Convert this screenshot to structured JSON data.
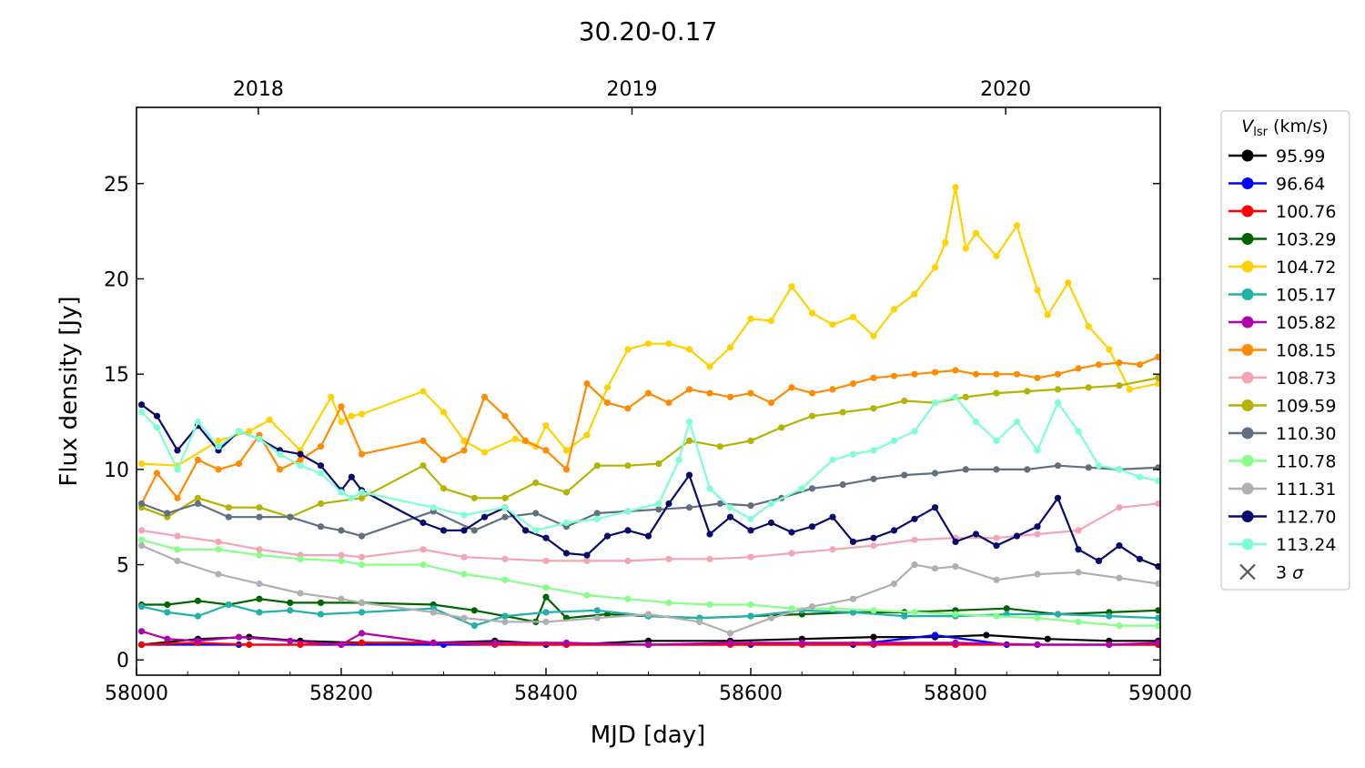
{
  "chart_data": {
    "type": "line",
    "title": "30.20-0.17",
    "xlabel": "MJD [day]",
    "ylabel": "Flux density [Jy]",
    "xlim": [
      58000,
      59000
    ],
    "ylim": [
      -0.8,
      29
    ],
    "x_ticks": [
      58000,
      58200,
      58400,
      58600,
      58800,
      59000
    ],
    "y_ticks": [
      0,
      5,
      10,
      15,
      20,
      25
    ],
    "top_axis": {
      "ticks": [
        {
          "label": "2018",
          "mjd": 58119
        },
        {
          "label": "2019",
          "mjd": 58484
        },
        {
          "label": "2020",
          "mjd": 58849
        }
      ]
    },
    "legend": {
      "title_symbol": "V",
      "title_subscript": "lsr",
      "title_unit": " (km/s)",
      "placement": "outside right, top",
      "extra_entry": {
        "marker": "x",
        "label": "3",
        "symbol": "σ"
      }
    },
    "grid": false,
    "series": [
      {
        "name": "95.99",
        "color": "#000000",
        "x": [
          58005,
          58060,
          58110,
          58160,
          58220,
          58290,
          58350,
          58420,
          58500,
          58580,
          58650,
          58720,
          58780,
          58830,
          58890,
          58950,
          58998
        ],
        "y": [
          0.8,
          1.1,
          1.2,
          1.0,
          0.9,
          0.9,
          1.0,
          0.8,
          1.0,
          1.0,
          1.1,
          1.2,
          1.2,
          1.3,
          1.1,
          1.0,
          1.0
        ]
      },
      {
        "name": "96.64",
        "color": "#0000ff",
        "x": [
          58005,
          58100,
          58200,
          58300,
          58400,
          58500,
          58600,
          58700,
          58780,
          58850,
          58950,
          58998
        ],
        "y": [
          0.8,
          0.8,
          0.8,
          0.8,
          0.8,
          0.8,
          0.8,
          0.8,
          1.3,
          0.8,
          0.8,
          0.8
        ]
      },
      {
        "name": "100.76",
        "color": "#ff0000",
        "x": [
          58005,
          58060,
          58110,
          58160,
          58220,
          58290,
          58350,
          58420,
          58500,
          58580,
          58650,
          58720,
          58800,
          58880,
          58950,
          58998
        ],
        "y": [
          0.8,
          0.9,
          0.8,
          0.8,
          0.9,
          0.9,
          0.8,
          0.8,
          0.8,
          0.8,
          0.8,
          0.8,
          0.8,
          0.8,
          0.8,
          0.8
        ]
      },
      {
        "name": "103.29",
        "color": "#006400",
        "x": [
          58005,
          58030,
          58060,
          58090,
          58120,
          58150,
          58180,
          58220,
          58290,
          58330,
          58360,
          58390,
          58400,
          58420,
          58460,
          58500,
          58550,
          58600,
          58650,
          58700,
          58750,
          58800,
          58850,
          58900,
          58950,
          58998
        ],
        "y": [
          2.9,
          2.9,
          3.1,
          2.9,
          3.2,
          3.0,
          3.0,
          3.0,
          2.9,
          2.6,
          2.3,
          2.0,
          3.3,
          2.2,
          2.4,
          2.3,
          2.2,
          2.3,
          2.4,
          2.5,
          2.5,
          2.6,
          2.7,
          2.4,
          2.5,
          2.6
        ]
      },
      {
        "name": "104.72",
        "color": "#ffd200",
        "x": [
          58005,
          58040,
          58080,
          58110,
          58130,
          58160,
          58190,
          58200,
          58210,
          58220,
          58280,
          58300,
          58320,
          58340,
          58370,
          58390,
          58400,
          58420,
          58440,
          58460,
          58480,
          58500,
          58520,
          58540,
          58560,
          58580,
          58600,
          58620,
          58640,
          58660,
          58680,
          58700,
          58720,
          58740,
          58760,
          58780,
          58790,
          58800,
          58810,
          58820,
          58840,
          58860,
          58880,
          58890,
          58910,
          58930,
          58950,
          58970,
          58998
        ],
        "y": [
          10.3,
          10.2,
          11.5,
          12.0,
          12.6,
          11.0,
          13.8,
          12.5,
          12.8,
          12.9,
          14.1,
          13.0,
          11.5,
          10.9,
          11.6,
          11.2,
          12.3,
          11.0,
          11.8,
          14.3,
          16.3,
          16.6,
          16.6,
          16.3,
          15.4,
          16.4,
          17.9,
          17.8,
          19.6,
          18.2,
          17.6,
          18.0,
          17.0,
          18.4,
          19.2,
          20.6,
          21.9,
          24.8,
          21.6,
          22.4,
          21.2,
          22.8,
          19.4,
          18.1,
          19.8,
          17.5,
          16.3,
          14.2,
          14.5
        ]
      },
      {
        "name": "105.17",
        "color": "#20b2aa",
        "x": [
          58005,
          58030,
          58060,
          58090,
          58120,
          58150,
          58180,
          58220,
          58290,
          58330,
          58360,
          58400,
          58450,
          58500,
          58550,
          58600,
          58650,
          58700,
          58750,
          58800,
          58850,
          58900,
          58950,
          58998
        ],
        "y": [
          2.8,
          2.5,
          2.3,
          2.9,
          2.5,
          2.6,
          2.4,
          2.5,
          2.7,
          1.8,
          2.3,
          2.5,
          2.6,
          2.3,
          2.2,
          2.3,
          2.6,
          2.5,
          2.3,
          2.3,
          2.4,
          2.4,
          2.3,
          2.2
        ]
      },
      {
        "name": "105.82",
        "color": "#b000b0",
        "x": [
          58005,
          58030,
          58060,
          58100,
          58150,
          58200,
          58220,
          58290,
          58350,
          58420,
          58500,
          58580,
          58650,
          58720,
          58800,
          58880,
          58950,
          58998
        ],
        "y": [
          1.5,
          1.1,
          1.0,
          1.2,
          1.0,
          0.8,
          1.4,
          0.9,
          0.9,
          0.9,
          0.8,
          0.9,
          0.9,
          0.9,
          0.9,
          0.8,
          0.8,
          0.9
        ]
      },
      {
        "name": "108.15",
        "color": "#ff8c00",
        "x": [
          58005,
          58020,
          58040,
          58060,
          58080,
          58100,
          58120,
          58140,
          58160,
          58180,
          58200,
          58220,
          58280,
          58300,
          58320,
          58340,
          58360,
          58380,
          58400,
          58420,
          58440,
          58460,
          58480,
          58500,
          58520,
          58540,
          58560,
          58580,
          58600,
          58620,
          58640,
          58660,
          58680,
          58700,
          58720,
          58740,
          58760,
          58780,
          58800,
          58820,
          58840,
          58860,
          58880,
          58900,
          58920,
          58940,
          58960,
          58980,
          58998
        ],
        "y": [
          8.2,
          9.8,
          8.5,
          10.5,
          10.0,
          10.3,
          11.8,
          10.0,
          10.5,
          11.2,
          13.3,
          10.8,
          11.5,
          10.5,
          11.0,
          13.8,
          12.8,
          11.5,
          11.0,
          10.0,
          14.5,
          13.5,
          13.2,
          14.0,
          13.5,
          14.2,
          14.0,
          13.8,
          14.0,
          13.5,
          14.3,
          14.0,
          14.2,
          14.5,
          14.8,
          14.9,
          15.0,
          15.1,
          15.2,
          15.0,
          15.0,
          15.0,
          14.8,
          15.0,
          15.3,
          15.5,
          15.6,
          15.5,
          15.9
        ]
      },
      {
        "name": "108.73",
        "color": "#f4a4b4",
        "x": [
          58005,
          58040,
          58080,
          58120,
          58160,
          58200,
          58220,
          58280,
          58320,
          58360,
          58400,
          58440,
          58480,
          58520,
          58560,
          58600,
          58640,
          58680,
          58720,
          58760,
          58800,
          58840,
          58880,
          58920,
          58960,
          58998
        ],
        "y": [
          6.8,
          6.5,
          6.2,
          5.8,
          5.5,
          5.5,
          5.4,
          5.8,
          5.4,
          5.3,
          5.2,
          5.2,
          5.2,
          5.3,
          5.3,
          5.4,
          5.6,
          5.8,
          6.0,
          6.3,
          6.4,
          6.4,
          6.6,
          6.8,
          8.0,
          8.2
        ]
      },
      {
        "name": "109.59",
        "color": "#b3b300",
        "x": [
          58005,
          58030,
          58060,
          58090,
          58120,
          58150,
          58180,
          58220,
          58280,
          58300,
          58330,
          58360,
          58390,
          58420,
          58450,
          58480,
          58510,
          58540,
          58570,
          58600,
          58630,
          58660,
          58690,
          58720,
          58750,
          58780,
          58810,
          58840,
          58870,
          58900,
          58930,
          58960,
          58998
        ],
        "y": [
          8.0,
          7.5,
          8.5,
          8.0,
          8.0,
          7.5,
          8.2,
          8.5,
          10.2,
          9.0,
          8.5,
          8.5,
          9.3,
          8.8,
          10.2,
          10.2,
          10.3,
          11.5,
          11.2,
          11.5,
          12.2,
          12.8,
          13.0,
          13.2,
          13.6,
          13.5,
          13.8,
          14.0,
          14.1,
          14.2,
          14.3,
          14.4,
          14.8
        ]
      },
      {
        "name": "110.30",
        "color": "#607080",
        "x": [
          58005,
          58030,
          58060,
          58090,
          58120,
          58150,
          58180,
          58200,
          58220,
          58290,
          58330,
          58360,
          58390,
          58420,
          58450,
          58480,
          58510,
          58540,
          58570,
          58600,
          58630,
          58660,
          58690,
          58720,
          58750,
          58780,
          58810,
          58840,
          58870,
          58900,
          58930,
          58960,
          58998
        ],
        "y": [
          8.2,
          7.7,
          8.2,
          7.5,
          7.5,
          7.5,
          7.0,
          6.8,
          6.5,
          7.8,
          6.8,
          7.5,
          7.7,
          7.0,
          7.7,
          7.8,
          7.9,
          8.0,
          8.2,
          8.1,
          8.5,
          9.0,
          9.2,
          9.5,
          9.7,
          9.8,
          10.0,
          10.0,
          10.0,
          10.2,
          10.1,
          10.0,
          10.1
        ]
      },
      {
        "name": "110.78",
        "color": "#88ff88",
        "x": [
          58005,
          58040,
          58080,
          58120,
          58160,
          58200,
          58220,
          58280,
          58320,
          58360,
          58400,
          58440,
          58480,
          58520,
          58560,
          58600,
          58640,
          58680,
          58720,
          58760,
          58800,
          58840,
          58880,
          58920,
          58960,
          58998
        ],
        "y": [
          6.3,
          5.8,
          5.8,
          5.5,
          5.3,
          5.2,
          5.0,
          5.0,
          4.5,
          4.2,
          3.8,
          3.4,
          3.2,
          3.0,
          2.9,
          2.9,
          2.7,
          2.7,
          2.6,
          2.5,
          2.4,
          2.3,
          2.2,
          2.0,
          1.8,
          1.8
        ]
      },
      {
        "name": "111.31",
        "color": "#b0b0b0",
        "x": [
          58005,
          58040,
          58080,
          58120,
          58160,
          58200,
          58220,
          58290,
          58320,
          58360,
          58400,
          58450,
          58500,
          58550,
          58580,
          58620,
          58660,
          58700,
          58740,
          58760,
          58780,
          58800,
          58840,
          58880,
          58920,
          58960,
          58998
        ],
        "y": [
          6.0,
          5.2,
          4.5,
          4.0,
          3.5,
          3.2,
          3.0,
          2.5,
          2.2,
          2.0,
          2.0,
          2.2,
          2.4,
          2.0,
          1.4,
          2.2,
          2.8,
          3.2,
          4.0,
          5.0,
          4.8,
          4.9,
          4.2,
          4.5,
          4.6,
          4.3,
          4.0
        ]
      },
      {
        "name": "112.70",
        "color": "#0a0a6e",
        "x": [
          58005,
          58020,
          58040,
          58060,
          58080,
          58100,
          58120,
          58140,
          58160,
          58180,
          58200,
          58210,
          58220,
          58280,
          58300,
          58320,
          58340,
          58360,
          58380,
          58400,
          58420,
          58440,
          58460,
          58480,
          58500,
          58520,
          58540,
          58560,
          58580,
          58600,
          58620,
          58640,
          58660,
          58680,
          58700,
          58720,
          58740,
          58760,
          58780,
          58800,
          58820,
          58840,
          58860,
          58880,
          58900,
          58920,
          58940,
          58960,
          58980,
          58998
        ],
        "y": [
          13.4,
          12.8,
          11.0,
          12.3,
          11.0,
          12.0,
          11.6,
          11.0,
          10.8,
          10.2,
          8.9,
          9.6,
          8.9,
          7.2,
          6.8,
          6.8,
          7.5,
          8.0,
          6.8,
          6.4,
          5.6,
          5.5,
          6.5,
          6.8,
          6.5,
          8.2,
          9.7,
          6.6,
          7.5,
          6.8,
          7.2,
          6.7,
          7.0,
          7.5,
          6.2,
          6.4,
          6.8,
          7.4,
          8.0,
          6.2,
          6.6,
          6.0,
          6.5,
          7.0,
          8.5,
          5.8,
          5.2,
          6.0,
          5.3,
          4.9
        ]
      },
      {
        "name": "113.24",
        "color": "#7fffd4",
        "x": [
          58005,
          58020,
          58040,
          58060,
          58080,
          58100,
          58120,
          58140,
          58160,
          58180,
          58200,
          58210,
          58220,
          58290,
          58320,
          58360,
          58390,
          58420,
          58450,
          58480,
          58510,
          58530,
          58540,
          58560,
          58580,
          58600,
          58620,
          58650,
          58680,
          58700,
          58720,
          58740,
          58760,
          58780,
          58800,
          58820,
          58840,
          58860,
          58880,
          58900,
          58920,
          58940,
          58960,
          58980,
          58998
        ],
        "y": [
          13.0,
          12.2,
          10.0,
          12.5,
          11.2,
          12.0,
          11.6,
          10.8,
          10.2,
          9.8,
          8.8,
          8.5,
          8.8,
          8.0,
          7.6,
          8.0,
          6.8,
          7.2,
          7.4,
          7.8,
          8.2,
          10.5,
          12.5,
          9.0,
          8.0,
          7.4,
          8.2,
          9.0,
          10.5,
          10.8,
          11.0,
          11.5,
          12.0,
          13.5,
          13.8,
          12.5,
          11.5,
          12.5,
          11.0,
          13.5,
          12.0,
          10.2,
          10.0,
          9.6,
          9.4
        ]
      }
    ]
  }
}
